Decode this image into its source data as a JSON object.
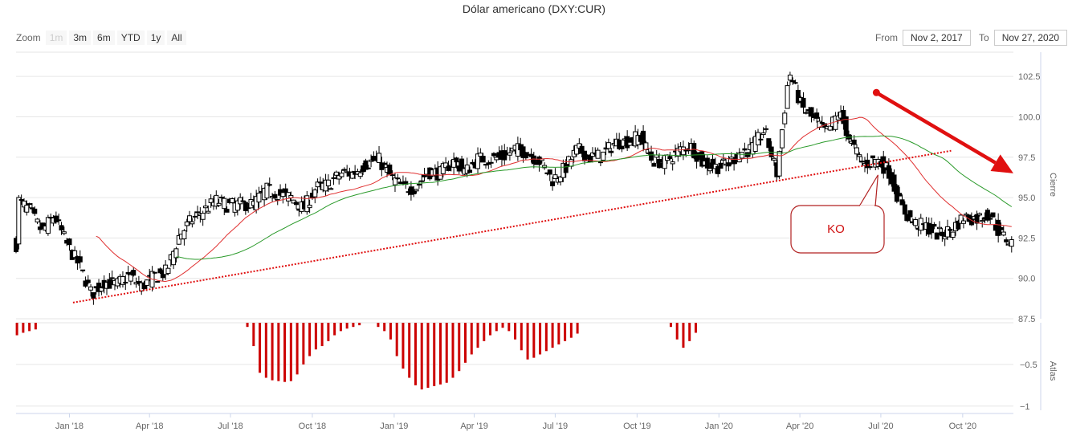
{
  "title": "Dólar americano (DXY:CUR)",
  "zoom": {
    "label": "Zoom",
    "buttons": [
      {
        "label": "1m",
        "disabled": true
      },
      {
        "label": "3m",
        "disabled": false
      },
      {
        "label": "6m",
        "disabled": false
      },
      {
        "label": "YTD",
        "disabled": false
      },
      {
        "label": "1y",
        "disabled": false
      },
      {
        "label": "All",
        "disabled": false
      }
    ]
  },
  "range": {
    "from_label": "From",
    "from_value": "Nov 2, 2017",
    "to_label": "To",
    "to_value": "Nov 27, 2020"
  },
  "colors": {
    "up_candle": "#ffffff",
    "down_candle": "#000000",
    "ma_short": "#e03030",
    "ma_long": "#2a9a2a",
    "atlas_bar": "#cc0000",
    "annotation": "#e01010"
  },
  "chart_data": {
    "type": "candlestick",
    "x_tick_labels": [
      "Jan '18",
      "Apr '18",
      "Jul '18",
      "Oct '18",
      "Jan '19",
      "Apr '19",
      "Jul '19",
      "Oct '19",
      "Jan '20",
      "Apr '20",
      "Jul '20",
      "Oct '20"
    ],
    "x_range": [
      "2017-11-02",
      "2020-11-27"
    ],
    "price_axis": {
      "label": "Cierre",
      "ylim": [
        87.5,
        104
      ],
      "ticks": [
        87.5,
        90,
        92.5,
        95,
        97.5,
        100,
        102.5
      ]
    },
    "indicator_axis": {
      "label": "Atlas",
      "ticks": [
        -0.5,
        -1
      ],
      "ylim": [
        -1.05,
        0
      ]
    },
    "close_series": [
      [
        "2017-11-03",
        94.9
      ],
      [
        "2017-11-17",
        94.2
      ],
      [
        "2017-12-01",
        92.9
      ],
      [
        "2017-12-15",
        93.9
      ],
      [
        "2017-12-29",
        92.1
      ],
      [
        "2018-01-12",
        90.8
      ],
      [
        "2018-01-26",
        89.0
      ],
      [
        "2018-02-09",
        89.8
      ],
      [
        "2018-02-23",
        89.6
      ],
      [
        "2018-03-09",
        90.2
      ],
      [
        "2018-03-23",
        89.5
      ],
      [
        "2018-04-06",
        90.1
      ],
      [
        "2018-04-20",
        90.4
      ],
      [
        "2018-05-04",
        92.6
      ],
      [
        "2018-05-18",
        93.6
      ],
      [
        "2018-06-01",
        94.2
      ],
      [
        "2018-06-15",
        94.8
      ],
      [
        "2018-06-29",
        94.5
      ],
      [
        "2018-07-13",
        94.6
      ],
      [
        "2018-07-27",
        94.6
      ],
      [
        "2018-08-10",
        95.5
      ],
      [
        "2018-08-24",
        95.2
      ],
      [
        "2018-09-07",
        95.0
      ],
      [
        "2018-09-21",
        94.3
      ],
      [
        "2018-10-05",
        95.6
      ],
      [
        "2018-10-19",
        95.8
      ],
      [
        "2018-11-02",
        96.5
      ],
      [
        "2018-11-16",
        96.5
      ],
      [
        "2018-11-30",
        97.1
      ],
      [
        "2018-12-14",
        97.4
      ],
      [
        "2018-12-28",
        96.3
      ],
      [
        "2019-01-11",
        95.6
      ],
      [
        "2019-01-25",
        95.6
      ],
      [
        "2019-02-08",
        96.6
      ],
      [
        "2019-02-22",
        96.5
      ],
      [
        "2019-03-08",
        97.3
      ],
      [
        "2019-03-22",
        96.6
      ],
      [
        "2019-04-05",
        97.4
      ],
      [
        "2019-04-19",
        97.4
      ],
      [
        "2019-05-03",
        97.5
      ],
      [
        "2019-05-17",
        98.0
      ],
      [
        "2019-05-31",
        97.8
      ],
      [
        "2019-06-14",
        97.2
      ],
      [
        "2019-06-28",
        96.1
      ],
      [
        "2019-07-12",
        96.8
      ],
      [
        "2019-07-26",
        98.0
      ],
      [
        "2019-08-09",
        97.5
      ],
      [
        "2019-08-23",
        97.6
      ],
      [
        "2019-09-06",
        98.4
      ],
      [
        "2019-09-20",
        98.5
      ],
      [
        "2019-10-04",
        98.8
      ],
      [
        "2019-10-18",
        97.3
      ],
      [
        "2019-11-01",
        97.2
      ],
      [
        "2019-11-15",
        97.8
      ],
      [
        "2019-11-29",
        98.3
      ],
      [
        "2019-12-13",
        97.2
      ],
      [
        "2019-12-27",
        96.9
      ],
      [
        "2020-01-10",
        97.0
      ],
      [
        "2020-01-24",
        97.8
      ],
      [
        "2020-02-07",
        98.0
      ],
      [
        "2020-02-21",
        99.2
      ],
      [
        "2020-03-06",
        96.5
      ],
      [
        "2020-03-20",
        102.8
      ],
      [
        "2020-04-03",
        100.6
      ],
      [
        "2020-04-17",
        99.8
      ],
      [
        "2020-05-01",
        99.0
      ],
      [
        "2020-05-15",
        100.3
      ],
      [
        "2020-05-29",
        98.3
      ],
      [
        "2020-06-12",
        97.0
      ],
      [
        "2020-06-26",
        97.4
      ],
      [
        "2020-07-10",
        96.6
      ],
      [
        "2020-07-24",
        94.4
      ],
      [
        "2020-08-07",
        93.4
      ],
      [
        "2020-08-21",
        93.2
      ],
      [
        "2020-09-04",
        92.7
      ],
      [
        "2020-09-18",
        93.0
      ],
      [
        "2020-10-02",
        93.8
      ],
      [
        "2020-10-16",
        93.7
      ],
      [
        "2020-10-30",
        94.0
      ],
      [
        "2020-11-13",
        92.7
      ],
      [
        "2020-11-27",
        92.1
      ]
    ],
    "ma_short_label": "",
    "ma_long_label": "",
    "atlas_bars": [
      [
        "2017-11-03",
        -0.15
      ],
      [
        "2017-11-10",
        -0.12
      ],
      [
        "2017-11-17",
        -0.1
      ],
      [
        "2017-11-24",
        -0.08
      ],
      [
        "2018-07-20",
        -0.05
      ],
      [
        "2018-07-27",
        -0.28
      ],
      [
        "2018-08-03",
        -0.6
      ],
      [
        "2018-08-10",
        -0.66
      ],
      [
        "2018-08-17",
        -0.69
      ],
      [
        "2018-08-24",
        -0.7
      ],
      [
        "2018-08-31",
        -0.71
      ],
      [
        "2018-09-07",
        -0.7
      ],
      [
        "2018-09-14",
        -0.62
      ],
      [
        "2018-09-21",
        -0.5
      ],
      [
        "2018-09-28",
        -0.4
      ],
      [
        "2018-10-05",
        -0.32
      ],
      [
        "2018-10-12",
        -0.28
      ],
      [
        "2018-10-19",
        -0.22
      ],
      [
        "2018-10-26",
        -0.15
      ],
      [
        "2018-11-02",
        -0.1
      ],
      [
        "2018-11-09",
        -0.07
      ],
      [
        "2018-11-16",
        -0.05
      ],
      [
        "2018-11-23",
        -0.03
      ],
      [
        "2018-12-14",
        -0.05
      ],
      [
        "2018-12-21",
        -0.1
      ],
      [
        "2018-12-28",
        -0.2
      ],
      [
        "2019-01-04",
        -0.4
      ],
      [
        "2019-01-11",
        -0.55
      ],
      [
        "2019-01-18",
        -0.66
      ],
      [
        "2019-01-25",
        -0.75
      ],
      [
        "2019-02-01",
        -0.8
      ],
      [
        "2019-02-08",
        -0.78
      ],
      [
        "2019-02-15",
        -0.76
      ],
      [
        "2019-02-22",
        -0.74
      ],
      [
        "2019-03-01",
        -0.72
      ],
      [
        "2019-03-08",
        -0.66
      ],
      [
        "2019-03-15",
        -0.58
      ],
      [
        "2019-03-22",
        -0.48
      ],
      [
        "2019-03-29",
        -0.38
      ],
      [
        "2019-04-05",
        -0.3
      ],
      [
        "2019-04-12",
        -0.22
      ],
      [
        "2019-04-19",
        -0.15
      ],
      [
        "2019-04-26",
        -0.1
      ],
      [
        "2019-05-03",
        -0.06
      ],
      [
        "2019-05-10",
        -0.1
      ],
      [
        "2019-05-17",
        -0.2
      ],
      [
        "2019-05-24",
        -0.33
      ],
      [
        "2019-05-31",
        -0.44
      ],
      [
        "2019-06-07",
        -0.42
      ],
      [
        "2019-06-14",
        -0.38
      ],
      [
        "2019-06-21",
        -0.34
      ],
      [
        "2019-06-28",
        -0.3
      ],
      [
        "2019-07-05",
        -0.26
      ],
      [
        "2019-07-12",
        -0.22
      ],
      [
        "2019-07-19",
        -0.18
      ],
      [
        "2019-07-26",
        -0.13
      ],
      [
        "2019-11-08",
        -0.05
      ],
      [
        "2019-11-15",
        -0.2
      ],
      [
        "2019-11-22",
        -0.3
      ],
      [
        "2019-11-29",
        -0.22
      ],
      [
        "2019-12-06",
        -0.12
      ]
    ],
    "annotations": [
      {
        "type": "trendline",
        "style": "dotted",
        "from": [
          "2018-01-05",
          88.5
        ],
        "to": [
          "2020-09-18",
          97.9
        ]
      },
      {
        "type": "arrow",
        "from": [
          "2020-06-26",
          101.5
        ],
        "to": [
          "2020-11-27",
          96.5
        ]
      },
      {
        "type": "callout",
        "text": "KO",
        "point": [
          "2020-06-26",
          96.8
        ]
      }
    ]
  }
}
